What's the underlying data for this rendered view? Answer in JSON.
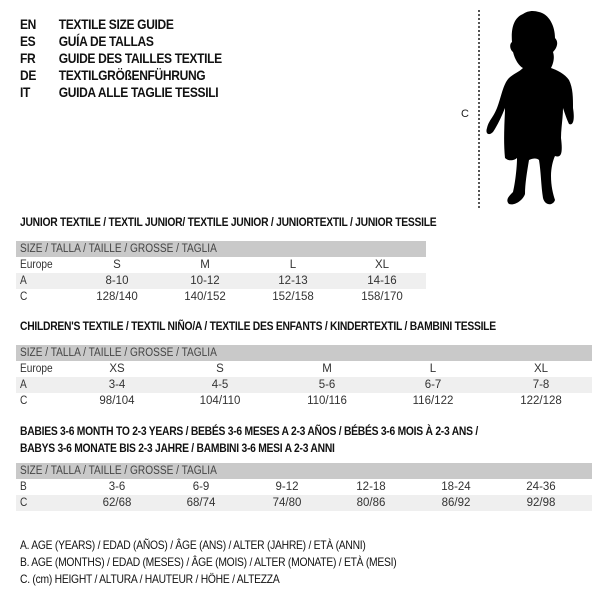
{
  "title": {
    "lines": [
      {
        "code": "EN",
        "text": "TEXTILE SIZE GUIDE"
      },
      {
        "code": "ES",
        "text": "GUÍA DE TALLAS"
      },
      {
        "code": "FR",
        "text": "GUIDE DES TAILLES TEXTILE"
      },
      {
        "code": "DE",
        "text": "TEXTILGRÖßENFÜHRUNG"
      },
      {
        "code": "IT",
        "text": "GUIDA ALLE TAGLIE TESSILI"
      }
    ]
  },
  "figure": {
    "measure_label": "C",
    "icon": "child-silhouette"
  },
  "tables": [
    {
      "heading": [
        "JUNIOR TEXTILE / TEXTIL JUNIOR/ TEXTILE JUNIOR / JUNIORTEXTIL / JUNIOR TESSILE"
      ],
      "header": "SIZE / TALLA / TAILLE / GRÖSSE / TAGLIA",
      "rows": [
        {
          "label": "Europe",
          "cells": [
            "S",
            "M",
            "L",
            "XL"
          ]
        },
        {
          "label": "A",
          "cells": [
            "8-10",
            "10-12",
            "12-13",
            "14-16"
          ]
        },
        {
          "label": "C",
          "cells": [
            "128/140",
            "140/152",
            "152/158",
            "158/170"
          ]
        }
      ]
    },
    {
      "heading": [
        "CHILDREN'S TEXTILE / TEXTIL NIÑO/A / TEXTILE DES ENFANTS / KINDERTEXTIL / BAMBINI TESSILE"
      ],
      "header": "SIZE / TALLA / TAILLE / GRÖSSE / TAGLIA",
      "rows": [
        {
          "label": "Europe",
          "cells": [
            "XS",
            "S",
            "M",
            "L",
            "XL"
          ]
        },
        {
          "label": "A",
          "cells": [
            "3-4",
            "4-5",
            "5-6",
            "6-7",
            "7-8"
          ]
        },
        {
          "label": "C",
          "cells": [
            "98/104",
            "104/110",
            "110/116",
            "116/122",
            "122/128"
          ]
        }
      ]
    },
    {
      "heading": [
        "BABIES 3-6 MONTH TO 2-3 YEARS / BEBÉS 3-6 MESES A 2-3 AÑOS / BÉBÉS 3-6 MOIS À 2-3 ANS /",
        "BABYS 3-6 MONATE BIS 2-3 JAHRE / BAMBINI 3-6 MESI A 2-3 ANNI"
      ],
      "header": "SIZE / TALLA / TAILLE / GRÖSSE / TAGLIA",
      "rows": [
        {
          "label": "B",
          "cells": [
            "3-6",
            "6-9",
            "9-12",
            "12-18",
            "18-24",
            "24-36"
          ]
        },
        {
          "label": "C",
          "cells": [
            "62/68",
            "68/74",
            "74/80",
            "80/86",
            "86/92",
            "92/98"
          ]
        }
      ]
    }
  ],
  "legend": [
    "A. AGE (YEARS) / EDAD (AÑOS) / ÂGE (ANS) / ALTER (JAHRE) / ETÀ (ANNI)",
    "B. AGE (MONTHS) / EDAD (MESES) / ÂGE (MOIS) / ALTER (MONATE) / ETÀ (MESI)",
    "C. (cm) HEIGHT / ALTURA / HAUTEUR / HÖHE / ALTEZZA"
  ],
  "colors": {
    "header_bar": "#c9c9c9",
    "shaded_row": "#efefef",
    "text": "#1a1a1a"
  }
}
